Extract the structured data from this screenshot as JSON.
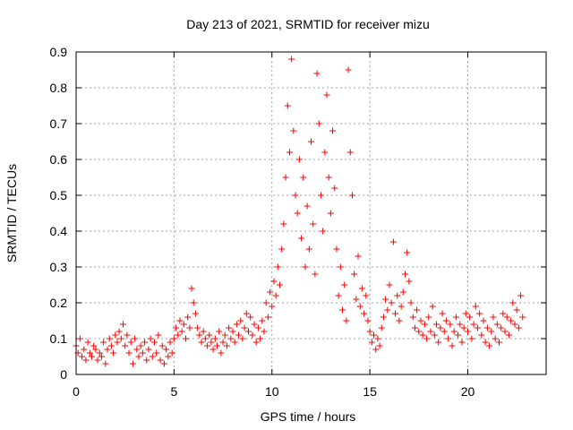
{
  "chart_data": {
    "type": "scatter",
    "title": "Day 213 of 2021, SRMTID for receiver mizu",
    "xlabel": "GPS time / hours",
    "ylabel": "SRMTID / TECUs",
    "xlim": [
      0,
      24
    ],
    "ylim": [
      0,
      0.9
    ],
    "xticks": [
      0,
      5,
      10,
      15,
      20
    ],
    "yticks": [
      0,
      0.1,
      0.2,
      0.3,
      0.4,
      0.5,
      0.6,
      0.7,
      0.8,
      0.9
    ],
    "xtick_labels": [
      "0",
      "5",
      "10",
      "15",
      "20"
    ],
    "ytick_labels": [
      "0",
      "0.1",
      "0.2",
      "0.3",
      "0.4",
      "0.5",
      "0.6",
      "0.7",
      "0.8",
      "0.9"
    ],
    "grid": true,
    "marker": "+",
    "color": "#ff0000",
    "series": [
      {
        "name": "SRMTID",
        "points": [
          [
            0.0,
            0.08
          ],
          [
            0.1,
            0.06
          ],
          [
            0.2,
            0.1
          ],
          [
            0.3,
            0.05
          ],
          [
            0.4,
            0.07
          ],
          [
            0.5,
            0.04
          ],
          [
            0.6,
            0.09
          ],
          [
            0.7,
            0.06
          ],
          [
            0.8,
            0.05
          ],
          [
            0.9,
            0.08
          ],
          [
            1.0,
            0.07
          ],
          [
            1.1,
            0.04
          ],
          [
            1.2,
            0.06
          ],
          [
            1.3,
            0.05
          ],
          [
            1.4,
            0.09
          ],
          [
            1.5,
            0.03
          ],
          [
            1.6,
            0.07
          ],
          [
            1.7,
            0.1
          ],
          [
            1.8,
            0.08
          ],
          [
            1.9,
            0.06
          ],
          [
            2.0,
            0.11
          ],
          [
            2.1,
            0.09
          ],
          [
            2.2,
            0.12
          ],
          [
            2.3,
            0.1
          ],
          [
            2.4,
            0.14
          ],
          [
            2.5,
            0.08
          ],
          [
            2.6,
            0.11
          ],
          [
            2.7,
            0.06
          ],
          [
            2.8,
            0.09
          ],
          [
            2.9,
            0.03
          ],
          [
            3.0,
            0.1
          ],
          [
            3.1,
            0.07
          ],
          [
            3.2,
            0.05
          ],
          [
            3.3,
            0.08
          ],
          [
            3.4,
            0.06
          ],
          [
            3.5,
            0.09
          ],
          [
            3.6,
            0.04
          ],
          [
            3.7,
            0.07
          ],
          [
            3.8,
            0.1
          ],
          [
            3.9,
            0.05
          ],
          [
            4.0,
            0.09
          ],
          [
            4.1,
            0.06
          ],
          [
            4.2,
            0.11
          ],
          [
            4.3,
            0.04
          ],
          [
            4.4,
            0.08
          ],
          [
            4.5,
            0.03
          ],
          [
            4.6,
            0.07
          ],
          [
            4.7,
            0.05
          ],
          [
            4.8,
            0.09
          ],
          [
            4.9,
            0.06
          ],
          [
            5.0,
            0.1
          ],
          [
            5.1,
            0.13
          ],
          [
            5.2,
            0.11
          ],
          [
            5.3,
            0.15
          ],
          [
            5.4,
            0.12
          ],
          [
            5.5,
            0.14
          ],
          [
            5.6,
            0.1
          ],
          [
            5.7,
            0.16
          ],
          [
            5.8,
            0.13
          ],
          [
            5.9,
            0.24
          ],
          [
            6.0,
            0.2
          ],
          [
            6.1,
            0.17
          ],
          [
            6.2,
            0.13
          ],
          [
            6.3,
            0.11
          ],
          [
            6.4,
            0.09
          ],
          [
            6.5,
            0.12
          ],
          [
            6.6,
            0.1
          ],
          [
            6.7,
            0.08
          ],
          [
            6.8,
            0.11
          ],
          [
            6.9,
            0.09
          ],
          [
            7.0,
            0.07
          ],
          [
            7.1,
            0.1
          ],
          [
            7.2,
            0.08
          ],
          [
            7.3,
            0.12
          ],
          [
            7.4,
            0.06
          ],
          [
            7.5,
            0.09
          ],
          [
            7.6,
            0.11
          ],
          [
            7.7,
            0.08
          ],
          [
            7.8,
            0.13
          ],
          [
            7.9,
            0.1
          ],
          [
            8.0,
            0.12
          ],
          [
            8.1,
            0.09
          ],
          [
            8.2,
            0.14
          ],
          [
            8.3,
            0.11
          ],
          [
            8.4,
            0.15
          ],
          [
            8.5,
            0.1
          ],
          [
            8.6,
            0.13
          ],
          [
            8.7,
            0.17
          ],
          [
            8.8,
            0.12
          ],
          [
            8.9,
            0.16
          ],
          [
            9.0,
            0.11
          ],
          [
            9.1,
            0.14
          ],
          [
            9.2,
            0.09
          ],
          [
            9.3,
            0.13
          ],
          [
            9.4,
            0.1
          ],
          [
            9.5,
            0.15
          ],
          [
            9.6,
            0.12
          ],
          [
            9.7,
            0.2
          ],
          [
            9.8,
            0.16
          ],
          [
            9.9,
            0.23
          ],
          [
            10.0,
            0.19
          ],
          [
            10.1,
            0.26
          ],
          [
            10.2,
            0.22
          ],
          [
            10.3,
            0.3
          ],
          [
            10.4,
            0.25
          ],
          [
            10.5,
            0.35
          ],
          [
            10.6,
            0.42
          ],
          [
            10.7,
            0.55
          ],
          [
            10.8,
            0.75
          ],
          [
            10.9,
            0.62
          ],
          [
            11.0,
            0.88
          ],
          [
            11.1,
            0.68
          ],
          [
            11.2,
            0.5
          ],
          [
            11.3,
            0.45
          ],
          [
            11.4,
            0.6
          ],
          [
            11.5,
            0.38
          ],
          [
            11.6,
            0.55
          ],
          [
            11.7,
            0.3
          ],
          [
            11.8,
            0.47
          ],
          [
            11.9,
            0.35
          ],
          [
            12.0,
            0.65
          ],
          [
            12.1,
            0.42
          ],
          [
            12.2,
            0.28
          ],
          [
            12.3,
            0.84
          ],
          [
            12.4,
            0.7
          ],
          [
            12.5,
            0.5
          ],
          [
            12.6,
            0.4
          ],
          [
            12.7,
            0.62
          ],
          [
            12.8,
            0.78
          ],
          [
            12.9,
            0.55
          ],
          [
            13.0,
            0.45
          ],
          [
            13.1,
            0.68
          ],
          [
            13.2,
            0.52
          ],
          [
            13.3,
            0.35
          ],
          [
            13.4,
            0.22
          ],
          [
            13.5,
            0.3
          ],
          [
            13.6,
            0.18
          ],
          [
            13.7,
            0.25
          ],
          [
            13.8,
            0.15
          ],
          [
            13.9,
            0.85
          ],
          [
            14.0,
            0.62
          ],
          [
            14.1,
            0.5
          ],
          [
            14.2,
            0.28
          ],
          [
            14.3,
            0.21
          ],
          [
            14.4,
            0.33
          ],
          [
            14.5,
            0.19
          ],
          [
            14.6,
            0.24
          ],
          [
            14.7,
            0.17
          ],
          [
            14.8,
            0.22
          ],
          [
            14.9,
            0.15
          ],
          [
            15.0,
            0.12
          ],
          [
            15.1,
            0.09
          ],
          [
            15.2,
            0.11
          ],
          [
            15.3,
            0.07
          ],
          [
            15.4,
            0.1
          ],
          [
            15.5,
            0.08
          ],
          [
            15.6,
            0.13
          ],
          [
            15.7,
            0.16
          ],
          [
            15.8,
            0.21
          ],
          [
            15.9,
            0.18
          ],
          [
            16.0,
            0.25
          ],
          [
            16.1,
            0.2
          ],
          [
            16.2,
            0.37
          ],
          [
            16.3,
            0.17
          ],
          [
            16.4,
            0.22
          ],
          [
            16.5,
            0.15
          ],
          [
            16.6,
            0.19
          ],
          [
            16.7,
            0.23
          ],
          [
            16.8,
            0.28
          ],
          [
            16.9,
            0.34
          ],
          [
            17.0,
            0.26
          ],
          [
            17.1,
            0.2
          ],
          [
            17.2,
            0.16
          ],
          [
            17.3,
            0.13
          ],
          [
            17.4,
            0.18
          ],
          [
            17.5,
            0.12
          ],
          [
            17.6,
            0.15
          ],
          [
            17.7,
            0.11
          ],
          [
            17.8,
            0.14
          ],
          [
            17.9,
            0.1
          ],
          [
            18.0,
            0.16
          ],
          [
            18.1,
            0.12
          ],
          [
            18.2,
            0.19
          ],
          [
            18.3,
            0.11
          ],
          [
            18.4,
            0.14
          ],
          [
            18.5,
            0.09
          ],
          [
            18.6,
            0.13
          ],
          [
            18.7,
            0.17
          ],
          [
            18.8,
            0.12
          ],
          [
            18.9,
            0.15
          ],
          [
            19.0,
            0.1
          ],
          [
            19.1,
            0.14
          ],
          [
            19.2,
            0.08
          ],
          [
            19.3,
            0.12
          ],
          [
            19.4,
            0.16
          ],
          [
            19.5,
            0.11
          ],
          [
            19.6,
            0.14
          ],
          [
            19.7,
            0.09
          ],
          [
            19.8,
            0.13
          ],
          [
            19.9,
            0.17
          ],
          [
            20.0,
            0.12
          ],
          [
            20.1,
            0.16
          ],
          [
            20.2,
            0.1
          ],
          [
            20.3,
            0.14
          ],
          [
            20.4,
            0.19
          ],
          [
            20.5,
            0.13
          ],
          [
            20.6,
            0.17
          ],
          [
            20.7,
            0.11
          ],
          [
            20.8,
            0.15
          ],
          [
            20.9,
            0.09
          ],
          [
            21.0,
            0.13
          ],
          [
            21.1,
            0.08
          ],
          [
            21.2,
            0.12
          ],
          [
            21.3,
            0.16
          ],
          [
            21.4,
            0.1
          ],
          [
            21.5,
            0.14
          ],
          [
            21.6,
            0.09
          ],
          [
            21.7,
            0.13
          ],
          [
            21.8,
            0.17
          ],
          [
            21.9,
            0.12
          ],
          [
            22.0,
            0.16
          ],
          [
            22.1,
            0.11
          ],
          [
            22.2,
            0.15
          ],
          [
            22.3,
            0.2
          ],
          [
            22.4,
            0.14
          ],
          [
            22.5,
            0.18
          ],
          [
            22.6,
            0.13
          ],
          [
            22.7,
            0.22
          ],
          [
            22.8,
            0.16
          ]
        ]
      }
    ]
  }
}
